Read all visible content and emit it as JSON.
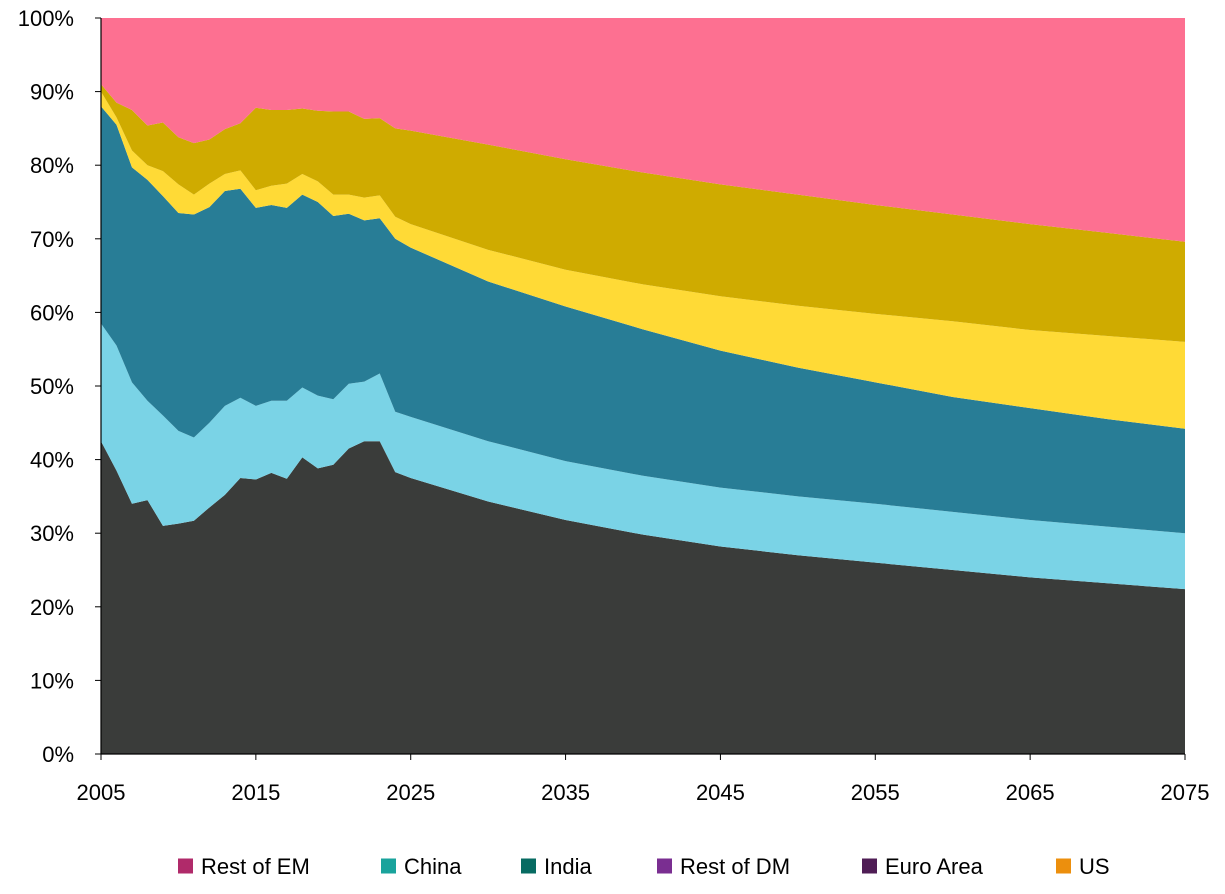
{
  "chart_data": {
    "type": "area",
    "stacked": true,
    "percent": true,
    "title": "",
    "xlabel": "",
    "ylabel": "",
    "xlim": [
      2005,
      2075
    ],
    "ylim": [
      0,
      100
    ],
    "grid": false,
    "legend_position": "bottom",
    "x_ticks": [
      "2005",
      "2015",
      "2025",
      "2035",
      "2045",
      "2055",
      "2065",
      "2075"
    ],
    "y_ticks": [
      "0%",
      "10%",
      "20%",
      "30%",
      "40%",
      "50%",
      "60%",
      "70%",
      "80%",
      "90%",
      "100%"
    ],
    "x": [
      2005,
      2006,
      2007,
      2008,
      2009,
      2010,
      2011,
      2012,
      2013,
      2014,
      2015,
      2016,
      2017,
      2018,
      2019,
      2020,
      2021,
      2022,
      2023,
      2024,
      2025,
      2030,
      2035,
      2040,
      2045,
      2050,
      2055,
      2060,
      2065,
      2070,
      2075
    ],
    "area_colors": [
      "#3a3c3a",
      "#7ad3e6",
      "#287d96",
      "#ffda36",
      "#cfab00",
      "#fd7091"
    ],
    "stack_order": [
      "dark",
      "light-blue",
      "teal",
      "yellow",
      "gold",
      "pink"
    ],
    "cumulative_tops": [
      [
        42.5,
        38.5,
        34.0,
        34.5,
        31.0,
        31.3,
        31.7,
        33.5,
        35.2,
        37.5,
        37.3,
        38.2,
        37.4,
        40.3,
        38.8,
        39.3,
        41.5,
        42.5,
        42.5,
        38.3,
        37.5,
        34.3,
        31.8,
        29.8,
        28.2,
        27.0,
        26.0,
        25.0,
        24.0,
        23.2,
        22.4
      ],
      [
        58.5,
        55.5,
        50.5,
        48.0,
        46.0,
        43.9,
        43.0,
        45.0,
        47.3,
        48.4,
        47.3,
        48.0,
        48.0,
        49.8,
        48.7,
        48.2,
        50.3,
        50.6,
        51.7,
        46.5,
        45.8,
        42.5,
        39.8,
        37.8,
        36.2,
        35.0,
        34.0,
        32.9,
        31.8,
        30.9,
        30.0
      ],
      [
        88.0,
        85.5,
        79.7,
        78.0,
        75.8,
        73.5,
        73.3,
        74.3,
        76.5,
        76.8,
        74.2,
        74.6,
        74.2,
        76.0,
        75.0,
        73.1,
        73.4,
        72.5,
        72.8,
        70.0,
        68.8,
        64.2,
        60.8,
        57.7,
        54.8,
        52.5,
        50.5,
        48.5,
        47.0,
        45.5,
        44.2
      ],
      [
        90.0,
        86.5,
        82.0,
        80.0,
        79.2,
        77.4,
        76.0,
        77.5,
        78.8,
        79.3,
        76.6,
        77.2,
        77.5,
        78.8,
        77.8,
        76.0,
        76.0,
        75.6,
        75.9,
        73.0,
        72.0,
        68.5,
        65.8,
        63.8,
        62.2,
        60.9,
        59.8,
        58.8,
        57.6,
        56.8,
        56.0
      ],
      [
        91.0,
        88.5,
        87.5,
        85.4,
        85.8,
        83.8,
        83.0,
        83.5,
        84.9,
        85.7,
        87.8,
        87.5,
        87.5,
        87.7,
        87.4,
        87.3,
        87.3,
        86.3,
        86.4,
        85.0,
        84.7,
        82.8,
        80.8,
        79.0,
        77.4,
        76.0,
        74.6,
        73.3,
        72.0,
        70.8,
        69.6
      ],
      [
        100,
        100,
        100,
        100,
        100,
        100,
        100,
        100,
        100,
        100,
        100,
        100,
        100,
        100,
        100,
        100,
        100,
        100,
        100,
        100,
        100,
        100,
        100,
        100,
        100,
        100,
        100,
        100,
        100,
        100,
        100
      ]
    ],
    "legend": [
      {
        "name": "Rest of EM",
        "color": "#b02a6a"
      },
      {
        "name": "China",
        "color": "#19a39c"
      },
      {
        "name": "India",
        "color": "#076b62"
      },
      {
        "name": "Rest of DM",
        "color": "#7a2e91"
      },
      {
        "name": "Euro Area",
        "color": "#4f1d55"
      },
      {
        "name": "US",
        "color": "#ec8f0d"
      }
    ]
  }
}
